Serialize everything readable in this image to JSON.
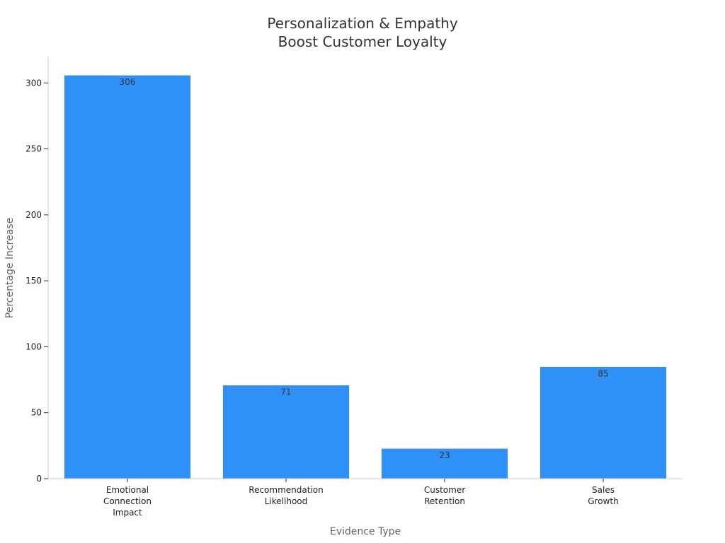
{
  "chart_data": {
    "type": "bar",
    "title": [
      "Personalization & Empathy",
      "Boost Customer Loyalty"
    ],
    "xlabel": "Evidence Type",
    "ylabel": "Percentage Increase",
    "categories": [
      [
        "Emotional",
        "Connection",
        "Impact"
      ],
      [
        "Recommendation",
        "Likelihood"
      ],
      [
        "Customer",
        "Retention"
      ],
      [
        "Sales",
        "Growth"
      ]
    ],
    "values": [
      306,
      71,
      23,
      85
    ],
    "data_labels": [
      "306",
      "71",
      "23",
      "85"
    ],
    "ylim": [
      0,
      320
    ],
    "yticks": [
      0,
      50,
      100,
      150,
      200,
      250,
      300
    ],
    "bar_color": "#2f91f7",
    "grid": false,
    "legend": "none"
  }
}
